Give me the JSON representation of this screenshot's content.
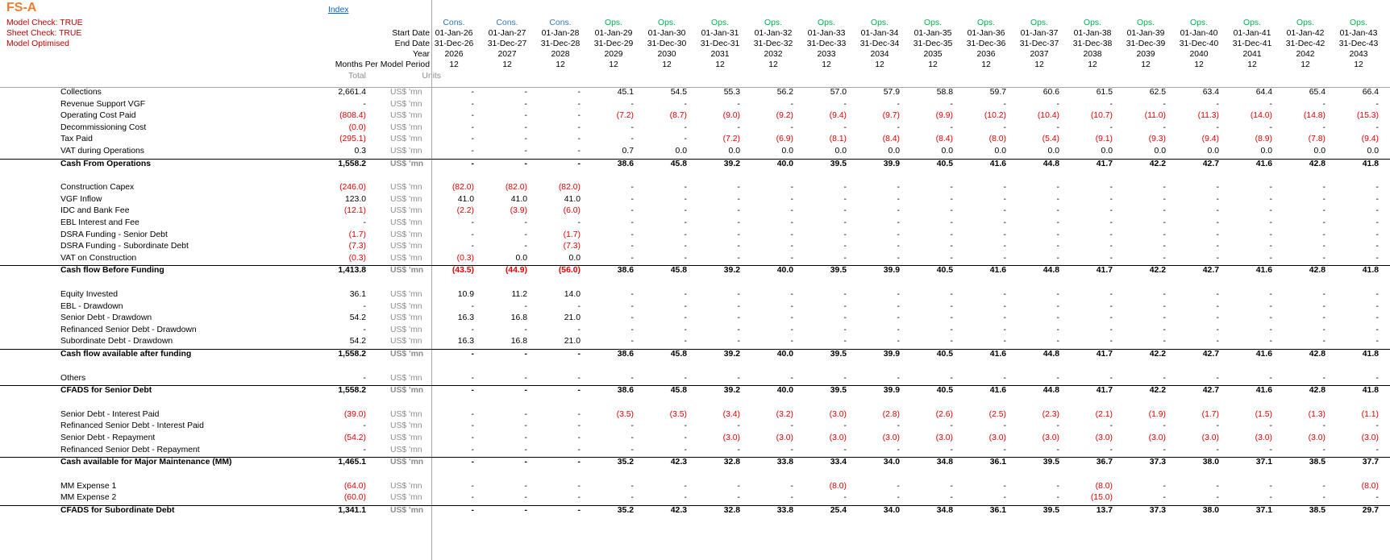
{
  "sheet": {
    "title": "FS-A",
    "checks": [
      "Model Check: TRUE",
      "Sheet Check: TRUE",
      "Model Optimised"
    ],
    "index_link": "Index"
  },
  "header": {
    "labels": {
      "start_date": "Start Date",
      "end_date": "End Date",
      "year": "Year",
      "months": "Months Per Model Period",
      "total": "Total",
      "units": "Units"
    },
    "periods": [
      {
        "phase": "Cons.",
        "start": "01-Jan-26",
        "end": "31-Dec-26",
        "year": "2026",
        "months": "12"
      },
      {
        "phase": "Cons.",
        "start": "01-Jan-27",
        "end": "31-Dec-27",
        "year": "2027",
        "months": "12"
      },
      {
        "phase": "Cons.",
        "start": "01-Jan-28",
        "end": "31-Dec-28",
        "year": "2028",
        "months": "12"
      },
      {
        "phase": "Ops.",
        "start": "01-Jan-29",
        "end": "31-Dec-29",
        "year": "2029",
        "months": "12"
      },
      {
        "phase": "Ops.",
        "start": "01-Jan-30",
        "end": "31-Dec-30",
        "year": "2030",
        "months": "12"
      },
      {
        "phase": "Ops.",
        "start": "01-Jan-31",
        "end": "31-Dec-31",
        "year": "2031",
        "months": "12"
      },
      {
        "phase": "Ops.",
        "start": "01-Jan-32",
        "end": "31-Dec-32",
        "year": "2032",
        "months": "12"
      },
      {
        "phase": "Ops.",
        "start": "01-Jan-33",
        "end": "31-Dec-33",
        "year": "2033",
        "months": "12"
      },
      {
        "phase": "Ops.",
        "start": "01-Jan-34",
        "end": "31-Dec-34",
        "year": "2034",
        "months": "12"
      },
      {
        "phase": "Ops.",
        "start": "01-Jan-35",
        "end": "31-Dec-35",
        "year": "2035",
        "months": "12"
      },
      {
        "phase": "Ops.",
        "start": "01-Jan-36",
        "end": "31-Dec-36",
        "year": "2036",
        "months": "12"
      },
      {
        "phase": "Ops.",
        "start": "01-Jan-37",
        "end": "31-Dec-37",
        "year": "2037",
        "months": "12"
      },
      {
        "phase": "Ops.",
        "start": "01-Jan-38",
        "end": "31-Dec-38",
        "year": "2038",
        "months": "12"
      },
      {
        "phase": "Ops.",
        "start": "01-Jan-39",
        "end": "31-Dec-39",
        "year": "2039",
        "months": "12"
      },
      {
        "phase": "Ops.",
        "start": "01-Jan-40",
        "end": "31-Dec-40",
        "year": "2040",
        "months": "12"
      },
      {
        "phase": "Ops.",
        "start": "01-Jan-41",
        "end": "31-Dec-41",
        "year": "2041",
        "months": "12"
      },
      {
        "phase": "Ops.",
        "start": "01-Jan-42",
        "end": "31-Dec-42",
        "year": "2042",
        "months": "12"
      },
      {
        "phase": "Ops.",
        "start": "01-Jan-43",
        "end": "31-Dec-43",
        "year": "2043",
        "months": "12"
      }
    ]
  },
  "rows": [
    {
      "label": "Collections",
      "total": "2,661.4",
      "unit": "US$ 'mn",
      "bold": false,
      "line": false,
      "values": [
        "-",
        "-",
        "-",
        "45.1",
        "54.5",
        "55.3",
        "56.2",
        "57.0",
        "57.9",
        "58.8",
        "59.7",
        "60.6",
        "61.5",
        "62.5",
        "63.4",
        "64.4",
        "65.4",
        "66.4"
      ]
    },
    {
      "label": "Revenue Support VGF",
      "total": "-",
      "unit": "US$ 'mn",
      "bold": false,
      "line": false,
      "values": [
        "-",
        "-",
        "-",
        "-",
        "-",
        "-",
        "-",
        "-",
        "-",
        "-",
        "-",
        "-",
        "-",
        "-",
        "-",
        "-",
        "-",
        "-"
      ]
    },
    {
      "label": "Operating Cost Paid",
      "total": "(808.4)",
      "unit": "US$ 'mn",
      "bold": false,
      "line": false,
      "values": [
        "-",
        "-",
        "-",
        "(7.2)",
        "(8.7)",
        "(9.0)",
        "(9.2)",
        "(9.4)",
        "(9.7)",
        "(9.9)",
        "(10.2)",
        "(10.4)",
        "(10.7)",
        "(11.0)",
        "(11.3)",
        "(14.0)",
        "(14.8)",
        "(15.3)"
      ]
    },
    {
      "label": "Decommissioning Cost",
      "total": "(0.0)",
      "unit": "US$ 'mn",
      "bold": false,
      "line": false,
      "values": [
        "-",
        "-",
        "-",
        "-",
        "-",
        "-",
        "-",
        "-",
        "-",
        "-",
        "-",
        "-",
        "-",
        "-",
        "-",
        "-",
        "-",
        "-"
      ]
    },
    {
      "label": "Tax Paid",
      "total": "(295.1)",
      "unit": "US$ 'mn",
      "bold": false,
      "line": false,
      "values": [
        "-",
        "-",
        "-",
        "-",
        "-",
        "(7.2)",
        "(6.9)",
        "(8.1)",
        "(8.4)",
        "(8.4)",
        "(8.0)",
        "(5.4)",
        "(9.1)",
        "(9.3)",
        "(9.4)",
        "(8.9)",
        "(7.8)",
        "(9.4)"
      ]
    },
    {
      "label": "VAT during Operations",
      "total": "0.3",
      "unit": "US$ 'mn",
      "bold": false,
      "line": false,
      "values": [
        "-",
        "-",
        "-",
        "0.7",
        "0.0",
        "0.0",
        "0.0",
        "0.0",
        "0.0",
        "0.0",
        "0.0",
        "0.0",
        "0.0",
        "0.0",
        "0.0",
        "0.0",
        "0.0",
        "0.0"
      ]
    },
    {
      "label": "Cash From Operations",
      "total": "1,558.2",
      "unit": "US$ 'mn",
      "bold": true,
      "line": true,
      "values": [
        "-",
        "-",
        "-",
        "38.6",
        "45.8",
        "39.2",
        "40.0",
        "39.5",
        "39.9",
        "40.5",
        "41.6",
        "44.8",
        "41.7",
        "42.2",
        "42.7",
        "41.6",
        "42.8",
        "41.8"
      ]
    },
    null,
    {
      "label": "Construction Capex",
      "total": "(246.0)",
      "unit": "US$ 'mn",
      "bold": false,
      "line": false,
      "values": [
        "(82.0)",
        "(82.0)",
        "(82.0)",
        "-",
        "-",
        "-",
        "-",
        "-",
        "-",
        "-",
        "-",
        "-",
        "-",
        "-",
        "-",
        "-",
        "-",
        "-"
      ]
    },
    {
      "label": "VGF Inflow",
      "total": "123.0",
      "unit": "US$ 'mn",
      "bold": false,
      "line": false,
      "values": [
        "41.0",
        "41.0",
        "41.0",
        "-",
        "-",
        "-",
        "-",
        "-",
        "-",
        "-",
        "-",
        "-",
        "-",
        "-",
        "-",
        "-",
        "-",
        "-"
      ]
    },
    {
      "label": "IDC and Bank Fee",
      "total": "(12.1)",
      "unit": "US$ 'mn",
      "bold": false,
      "line": false,
      "values": [
        "(2.2)",
        "(3.9)",
        "(6.0)",
        "-",
        "-",
        "-",
        "-",
        "-",
        "-",
        "-",
        "-",
        "-",
        "-",
        "-",
        "-",
        "-",
        "-",
        "-"
      ]
    },
    {
      "label": "EBL Interest and Fee",
      "total": "-",
      "unit": "US$ 'mn",
      "bold": false,
      "line": false,
      "values": [
        "-",
        "-",
        "-",
        "-",
        "-",
        "-",
        "-",
        "-",
        "-",
        "-",
        "-",
        "-",
        "-",
        "-",
        "-",
        "-",
        "-",
        "-"
      ]
    },
    {
      "label": "DSRA Funding - Senior Debt",
      "total": "(1.7)",
      "unit": "US$ 'mn",
      "bold": false,
      "line": false,
      "values": [
        "-",
        "-",
        "(1.7)",
        "-",
        "-",
        "-",
        "-",
        "-",
        "-",
        "-",
        "-",
        "-",
        "-",
        "-",
        "-",
        "-",
        "-",
        "-"
      ]
    },
    {
      "label": "DSRA Funding - Subordinate Debt",
      "total": "(7.3)",
      "unit": "US$ 'mn",
      "bold": false,
      "line": false,
      "values": [
        "-",
        "-",
        "(7.3)",
        "-",
        "-",
        "-",
        "-",
        "-",
        "-",
        "-",
        "-",
        "-",
        "-",
        "-",
        "-",
        "-",
        "-",
        "-"
      ]
    },
    {
      "label": "VAT on Construction",
      "total": "(0.3)",
      "unit": "US$ 'mn",
      "bold": false,
      "line": false,
      "values": [
        "(0.3)",
        "0.0",
        "0.0",
        "-",
        "-",
        "-",
        "-",
        "-",
        "-",
        "-",
        "-",
        "-",
        "-",
        "-",
        "-",
        "-",
        "-",
        "-"
      ]
    },
    {
      "label": "Cash flow Before Funding",
      "total": "1,413.8",
      "unit": "US$ 'mn",
      "bold": true,
      "line": true,
      "values": [
        "(43.5)",
        "(44.9)",
        "(56.0)",
        "38.6",
        "45.8",
        "39.2",
        "40.0",
        "39.5",
        "39.9",
        "40.5",
        "41.6",
        "44.8",
        "41.7",
        "42.2",
        "42.7",
        "41.6",
        "42.8",
        "41.8"
      ]
    },
    null,
    {
      "label": "Equity Invested",
      "total": "36.1",
      "unit": "US$ 'mn",
      "bold": false,
      "line": false,
      "values": [
        "10.9",
        "11.2",
        "14.0",
        "-",
        "-",
        "-",
        "-",
        "-",
        "-",
        "-",
        "-",
        "-",
        "-",
        "-",
        "-",
        "-",
        "-",
        "-"
      ]
    },
    {
      "label": "EBL - Drawdown",
      "total": "-",
      "unit": "US$ 'mn",
      "bold": false,
      "line": false,
      "values": [
        "-",
        "-",
        "-",
        "-",
        "-",
        "-",
        "-",
        "-",
        "-",
        "-",
        "-",
        "-",
        "-",
        "-",
        "-",
        "-",
        "-",
        "-"
      ]
    },
    {
      "label": "Senior Debt - Drawdown",
      "total": "54.2",
      "unit": "US$ 'mn",
      "bold": false,
      "line": false,
      "values": [
        "16.3",
        "16.8",
        "21.0",
        "-",
        "-",
        "-",
        "-",
        "-",
        "-",
        "-",
        "-",
        "-",
        "-",
        "-",
        "-",
        "-",
        "-",
        "-"
      ]
    },
    {
      "label": "Refinanced Senior Debt - Drawdown",
      "total": "-",
      "unit": "US$ 'mn",
      "bold": false,
      "line": false,
      "values": [
        "-",
        "-",
        "-",
        "-",
        "-",
        "-",
        "-",
        "-",
        "-",
        "-",
        "-",
        "-",
        "-",
        "-",
        "-",
        "-",
        "-",
        "-"
      ]
    },
    {
      "label": "Subordinate Debt - Drawdown",
      "total": "54.2",
      "unit": "US$ 'mn",
      "bold": false,
      "line": false,
      "values": [
        "16.3",
        "16.8",
        "21.0",
        "-",
        "-",
        "-",
        "-",
        "-",
        "-",
        "-",
        "-",
        "-",
        "-",
        "-",
        "-",
        "-",
        "-",
        "-"
      ]
    },
    {
      "label": "Cash flow available after funding",
      "total": "1,558.2",
      "unit": "US$ 'mn",
      "bold": true,
      "line": true,
      "values": [
        "-",
        "-",
        "-",
        "38.6",
        "45.8",
        "39.2",
        "40.0",
        "39.5",
        "39.9",
        "40.5",
        "41.6",
        "44.8",
        "41.7",
        "42.2",
        "42.7",
        "41.6",
        "42.8",
        "41.8"
      ]
    },
    null,
    {
      "label": "Others",
      "total": "-",
      "unit": "US$ 'mn",
      "bold": false,
      "line": false,
      "values": [
        "-",
        "-",
        "-",
        "-",
        "-",
        "-",
        "-",
        "-",
        "-",
        "-",
        "-",
        "-",
        "-",
        "-",
        "-",
        "-",
        "-",
        "-"
      ]
    },
    {
      "label": "CFADS for Senior Debt",
      "total": "1,558.2",
      "unit": "US$ 'mn",
      "bold": true,
      "line": true,
      "values": [
        "-",
        "-",
        "-",
        "38.6",
        "45.8",
        "39.2",
        "40.0",
        "39.5",
        "39.9",
        "40.5",
        "41.6",
        "44.8",
        "41.7",
        "42.2",
        "42.7",
        "41.6",
        "42.8",
        "41.8"
      ]
    },
    null,
    {
      "label": "Senior Debt - Interest Paid",
      "total": "(39.0)",
      "unit": "US$ 'mn",
      "bold": false,
      "line": false,
      "values": [
        "-",
        "-",
        "-",
        "(3.5)",
        "(3.5)",
        "(3.4)",
        "(3.2)",
        "(3.0)",
        "(2.8)",
        "(2.6)",
        "(2.5)",
        "(2.3)",
        "(2.1)",
        "(1.9)",
        "(1.7)",
        "(1.5)",
        "(1.3)",
        "(1.1)"
      ]
    },
    {
      "label": "Refinanced Senior Debt - Interest Paid",
      "total": "-",
      "unit": "US$ 'mn",
      "bold": false,
      "line": false,
      "values": [
        "-",
        "-",
        "-",
        "-",
        "-",
        "-",
        "-",
        "-",
        "-",
        "-",
        "-",
        "-",
        "-",
        "-",
        "-",
        "-",
        "-",
        "-"
      ]
    },
    {
      "label": "Senior Debt - Repayment",
      "total": "(54.2)",
      "unit": "US$ 'mn",
      "bold": false,
      "line": false,
      "values": [
        "-",
        "-",
        "-",
        "-",
        "-",
        "(3.0)",
        "(3.0)",
        "(3.0)",
        "(3.0)",
        "(3.0)",
        "(3.0)",
        "(3.0)",
        "(3.0)",
        "(3.0)",
        "(3.0)",
        "(3.0)",
        "(3.0)",
        "(3.0)"
      ]
    },
    {
      "label": "Refinanced Senior Debt - Repayment",
      "total": "-",
      "unit": "US$ 'mn",
      "bold": false,
      "line": false,
      "values": [
        "-",
        "-",
        "-",
        "-",
        "-",
        "-",
        "-",
        "-",
        "-",
        "-",
        "-",
        "-",
        "-",
        "-",
        "-",
        "-",
        "-",
        "-"
      ]
    },
    {
      "label": "Cash available for Major Maintenance (MM)",
      "total": "1,465.1",
      "unit": "US$ 'mn",
      "bold": true,
      "line": true,
      "values": [
        "-",
        "-",
        "-",
        "35.2",
        "42.3",
        "32.8",
        "33.8",
        "33.4",
        "34.0",
        "34.8",
        "36.1",
        "39.5",
        "36.7",
        "37.3",
        "38.0",
        "37.1",
        "38.5",
        "37.7"
      ]
    },
    null,
    {
      "label": "MM Expense 1",
      "total": "(64.0)",
      "unit": "US$ 'mn",
      "bold": false,
      "line": false,
      "values": [
        "-",
        "-",
        "-",
        "-",
        "-",
        "-",
        "-",
        "(8.0)",
        "-",
        "-",
        "-",
        "-",
        "(8.0)",
        "-",
        "-",
        "-",
        "-",
        "(8.0)"
      ]
    },
    {
      "label": "MM Expense 2",
      "total": "(60.0)",
      "unit": "US$ 'mn",
      "bold": false,
      "line": false,
      "values": [
        "-",
        "-",
        "-",
        "-",
        "-",
        "-",
        "-",
        "-",
        "-",
        "-",
        "-",
        "-",
        "(15.0)",
        "-",
        "-",
        "-",
        "-",
        "-"
      ]
    },
    {
      "label": "CFADS for Subordinate Debt",
      "total": "1,341.1",
      "unit": "US$ 'mn",
      "bold": true,
      "line": true,
      "values": [
        "-",
        "-",
        "-",
        "35.2",
        "42.3",
        "32.8",
        "33.8",
        "25.4",
        "34.0",
        "34.8",
        "36.1",
        "39.5",
        "13.7",
        "37.3",
        "38.0",
        "37.1",
        "38.5",
        "29.7"
      ]
    }
  ]
}
